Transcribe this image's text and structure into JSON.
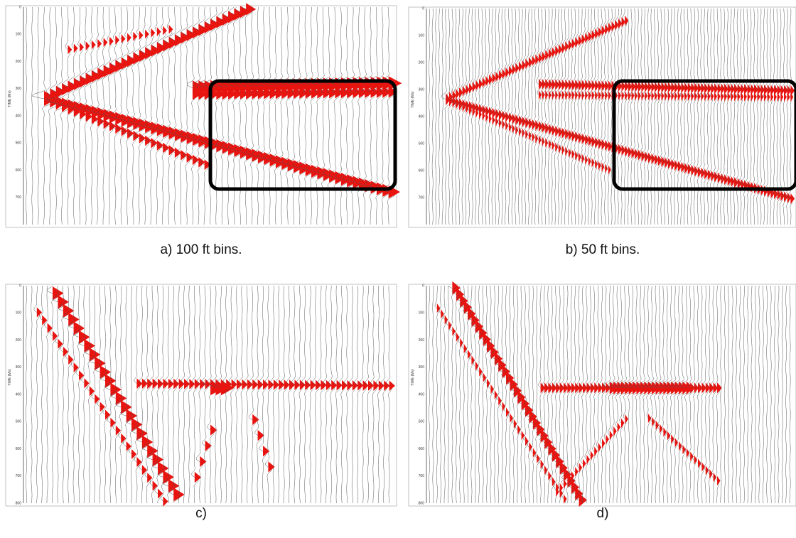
{
  "panels": [
    {
      "caption": "a) 100 ft bins.",
      "axis_label": "TIME (Ms)",
      "yticks": [
        0,
        100,
        200,
        300,
        400,
        500,
        600,
        700
      ]
    },
    {
      "caption": "b) 50 ft bins.",
      "axis_label": "TIME (Ms)",
      "yticks": [
        0,
        100,
        200,
        300,
        400,
        500,
        600,
        700
      ]
    },
    {
      "caption": "c)",
      "axis_label": "TIME (Ms)",
      "yticks": [
        0,
        100,
        200,
        300,
        400,
        500,
        600,
        700,
        800
      ]
    },
    {
      "caption": "d)",
      "axis_label": "TIME (Ms)",
      "yticks": [
        0,
        100,
        200,
        300,
        400,
        500,
        600,
        700,
        800
      ]
    }
  ]
}
